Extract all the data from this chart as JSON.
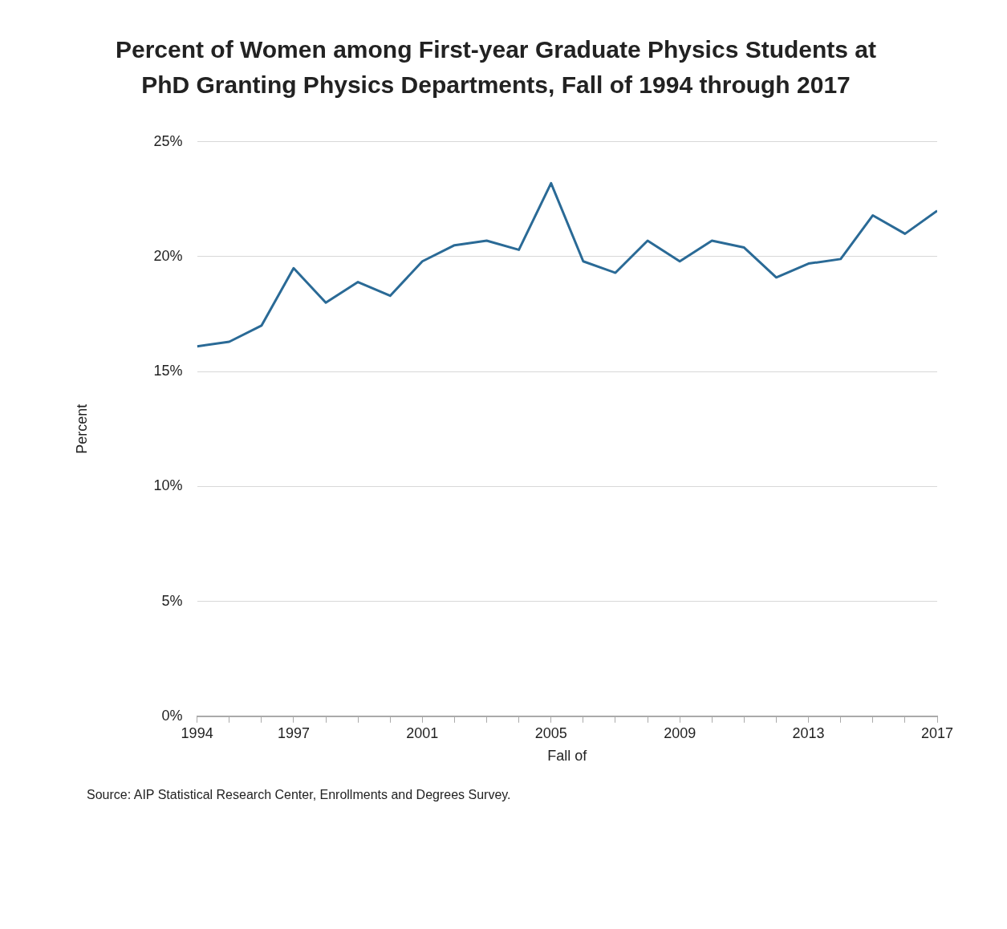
{
  "chart_data": {
    "type": "line",
    "title": "Percent of Women among First-year Graduate Physics Students at PhD Granting Physics Departments, Fall of 1994 through 2017",
    "xlabel": "Fall of",
    "ylabel": "Percent",
    "x": [
      1994,
      1995,
      1996,
      1997,
      1998,
      1999,
      2000,
      2001,
      2002,
      2003,
      2004,
      2005,
      2006,
      2007,
      2008,
      2009,
      2010,
      2011,
      2012,
      2013,
      2014,
      2015,
      2016,
      2017
    ],
    "series": [
      {
        "color": "#2a6a96",
        "values": [
          16.1,
          16.3,
          17.0,
          19.5,
          18.0,
          18.9,
          18.3,
          19.8,
          20.5,
          20.7,
          20.3,
          23.2,
          19.8,
          19.3,
          20.7,
          19.8,
          20.7,
          20.4,
          19.1,
          19.7,
          19.9,
          21.8,
          21.0,
          22.0
        ]
      }
    ],
    "xlim": [
      1994,
      2017
    ],
    "xticks": [
      1994,
      {
        "value": 1995,
        "label": null
      },
      {
        "value": 1996,
        "label": null
      },
      1997,
      {
        "value": 1998,
        "label": null
      },
      {
        "value": 1999,
        "label": null
      },
      {
        "value": 2000,
        "label": null
      },
      2001,
      {
        "value": 2002,
        "label": null
      },
      {
        "value": 2003,
        "label": null
      },
      {
        "value": 2004,
        "label": null
      },
      2005,
      {
        "value": 2006,
        "label": null
      },
      {
        "value": 2007,
        "label": null
      },
      {
        "value": 2008,
        "label": null
      },
      2009,
      {
        "value": 2010,
        "label": null
      },
      {
        "value": 2011,
        "label": null
      },
      {
        "value": 2012,
        "label": null
      },
      2013,
      {
        "value": 2014,
        "label": null
      },
      {
        "value": 2015,
        "label": null
      },
      {
        "value": 2016,
        "label": null
      },
      2017
    ],
    "ylim": [
      0,
      25
    ],
    "yticks": [
      {
        "value": 0,
        "label": "0%"
      },
      {
        "value": 5,
        "label": "5%"
      },
      {
        "value": 10,
        "label": "10%"
      },
      {
        "value": 15,
        "label": "15%"
      },
      {
        "value": 20,
        "label": "20%"
      },
      {
        "value": 25,
        "label": "25%"
      }
    ],
    "grid": "y",
    "legend": false,
    "marker": "none",
    "line_style": "solid",
    "annotations": [
      "Source: AIP Statistical Research Center, Enrollments and Degrees Survey."
    ]
  }
}
